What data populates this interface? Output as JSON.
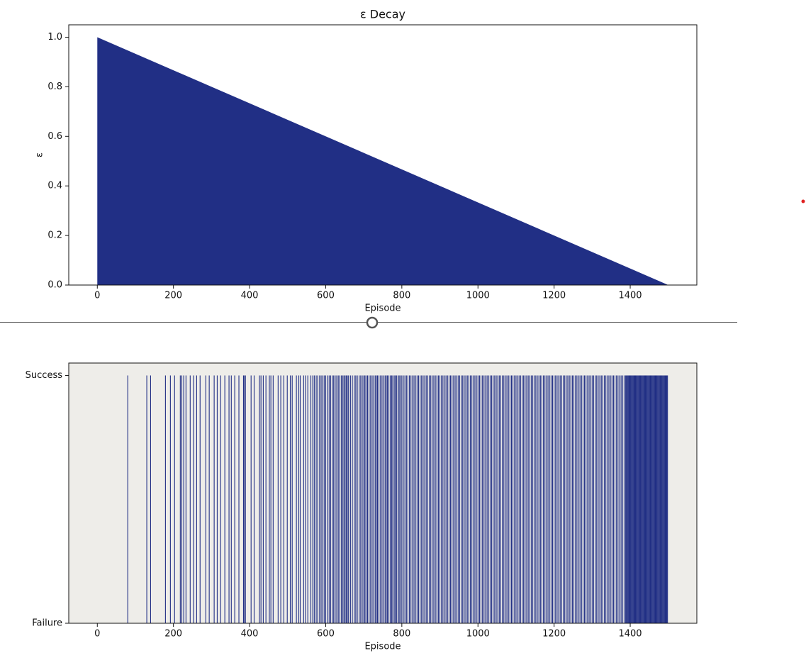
{
  "chart_data": [
    {
      "type": "area",
      "title": "ε Decay",
      "xlabel": "Episode",
      "ylabel": "ε",
      "x": [
        0,
        1500
      ],
      "values": [
        1.0,
        0.0
      ],
      "color": "#212f85",
      "xlim": [
        -75,
        1575
      ],
      "ylim": [
        0,
        1.05
      ],
      "xticks": [
        0,
        200,
        400,
        600,
        800,
        1000,
        1200,
        1400
      ],
      "yticks": [
        {
          "value": 0,
          "label": "0.0"
        },
        0.2,
        0.4,
        0.6,
        0.8,
        {
          "value": 1,
          "label": "1.0"
        }
      ]
    },
    {
      "type": "event",
      "xlabel": "Episode",
      "color": "#212f85",
      "background": "#eeede9",
      "xlim": [
        -75,
        1575
      ],
      "ylim": [
        0,
        1.05
      ],
      "xticks": [
        0,
        200,
        400,
        600,
        800,
        1000,
        1200,
        1400
      ],
      "yticks": [
        {
          "value": 0,
          "label": "Failure"
        },
        {
          "value": 1,
          "label": "Success"
        }
      ],
      "x": [
        80,
        130,
        140,
        179,
        192,
        203,
        218,
        222,
        227,
        233,
        244,
        253,
        261,
        270,
        285,
        294,
        307,
        315,
        324,
        335,
        346,
        352,
        361,
        372,
        384,
        387,
        389,
        404,
        412,
        426,
        430,
        436,
        443,
        452,
        456,
        462,
        475,
        482,
        490,
        499,
        507,
        512,
        523,
        529,
        533,
        542,
        547,
        553,
        561,
        566,
        570,
        575,
        579,
        584,
        588,
        592,
        596,
        600,
        604,
        609,
        613,
        617,
        621,
        625,
        629,
        633,
        637,
        641,
        645,
        648,
        651,
        654,
        657,
        660,
        665,
        670,
        675,
        679,
        683,
        688,
        692,
        696,
        700,
        703,
        706,
        710,
        714,
        718,
        722,
        726,
        730,
        733,
        736,
        740,
        744,
        748,
        752,
        756,
        759,
        762,
        766,
        770,
        773,
        776,
        780,
        783,
        786,
        790,
        793,
        796,
        800,
        804,
        808,
        812,
        816,
        820,
        824,
        828,
        832,
        836,
        840,
        844,
        848,
        852,
        856,
        860,
        864,
        868,
        872,
        876,
        880,
        884,
        888,
        892,
        896,
        900,
        904,
        908,
        912,
        916,
        920,
        924,
        928,
        932,
        936,
        940,
        944,
        948,
        952,
        956,
        960,
        964,
        968,
        972,
        976,
        980,
        984,
        988,
        992,
        996,
        1000,
        1004,
        1008,
        1012,
        1016,
        1020,
        1024,
        1028,
        1032,
        1036,
        1040,
        1044,
        1048,
        1052,
        1056,
        1060,
        1064,
        1068,
        1072,
        1076,
        1080,
        1084,
        1088,
        1092,
        1096,
        1100,
        1104,
        1108,
        1112,
        1116,
        1120,
        1124,
        1128,
        1132,
        1136,
        1140,
        1144,
        1148,
        1152,
        1156,
        1160,
        1164,
        1168,
        1172,
        1176,
        1180,
        1184,
        1188,
        1192,
        1196,
        1200,
        1204,
        1208,
        1212,
        1216,
        1220,
        1224,
        1228,
        1232,
        1236,
        1240,
        1244,
        1248,
        1252,
        1256,
        1260,
        1264,
        1268,
        1272,
        1276,
        1280,
        1284,
        1288,
        1292,
        1296,
        1300,
        1304,
        1308,
        1312,
        1316,
        1320,
        1324,
        1328,
        1332,
        1336,
        1340,
        1344,
        1348,
        1352,
        1356,
        1360,
        1364,
        1368,
        1372,
        1376,
        1380,
        1384,
        1388,
        1390,
        1392,
        1394,
        1396,
        1398,
        1400,
        1402,
        1404,
        1406,
        1408,
        1410,
        1412,
        1414,
        1416,
        1418,
        1420,
        1422,
        1424,
        1426,
        1428,
        1430,
        1432,
        1434,
        1436,
        1438,
        1440,
        1442,
        1444,
        1446,
        1448,
        1450,
        1452,
        1454,
        1456,
        1458,
        1460,
        1462,
        1464,
        1466,
        1468,
        1470,
        1472,
        1474,
        1476,
        1478,
        1480,
        1482,
        1484,
        1486,
        1488,
        1490,
        1492,
        1494,
        1496,
        1498
      ],
      "values": [
        1,
        1,
        1,
        1,
        1,
        1,
        1,
        1,
        1,
        1,
        1,
        1,
        1,
        1,
        1,
        1,
        1,
        1,
        1,
        1,
        1,
        1,
        1,
        1,
        1,
        1,
        1,
        1,
        1,
        1,
        1,
        1,
        1,
        1,
        1,
        1,
        1,
        1,
        1,
        1,
        1,
        1,
        1,
        1,
        1,
        1,
        1,
        1,
        1,
        1,
        1,
        1,
        1,
        1,
        1,
        1,
        1,
        1,
        1,
        1,
        1,
        1,
        1,
        1,
        1,
        1,
        1,
        1,
        1,
        1,
        1,
        1,
        1,
        1,
        1,
        1,
        1,
        1,
        1,
        1,
        1,
        1,
        1,
        1,
        1,
        1,
        1,
        1,
        1,
        1,
        1,
        1,
        1,
        1,
        1,
        1,
        1,
        1,
        1,
        1,
        1,
        1,
        1,
        1,
        1,
        1,
        1,
        1,
        1,
        1,
        1,
        1,
        1,
        1,
        1,
        1,
        1,
        1,
        1,
        1,
        1,
        1,
        1,
        1,
        1,
        1,
        1,
        1,
        1,
        1,
        1,
        1,
        1,
        1,
        1,
        1,
        1,
        1,
        1,
        1,
        1,
        1,
        1,
        1,
        1,
        1,
        1,
        1,
        1,
        1,
        1,
        1,
        1,
        1,
        1,
        1,
        1,
        1,
        1,
        1,
        1,
        1,
        1,
        1,
        1,
        1,
        1,
        1,
        1,
        1,
        1,
        1,
        1,
        1,
        1,
        1,
        1,
        1,
        1,
        1,
        1,
        1,
        1,
        1,
        1,
        1,
        1,
        1,
        1,
        1,
        1,
        1,
        1,
        1,
        1,
        1,
        1,
        1,
        1,
        1,
        1,
        1,
        1,
        1,
        1,
        1,
        1,
        1,
        1,
        1,
        1,
        1,
        1,
        1,
        1,
        1,
        1,
        1,
        1,
        1,
        1,
        1,
        1,
        1,
        1,
        1,
        1,
        1,
        1,
        1,
        1,
        1,
        1,
        1,
        1,
        1,
        1,
        1,
        1,
        1,
        1,
        1,
        1,
        1,
        1,
        1,
        1,
        1,
        1,
        1,
        1,
        1,
        1,
        1,
        1,
        1,
        1,
        1,
        1,
        1,
        1,
        1,
        1,
        1,
        1,
        1,
        1,
        1,
        1,
        1,
        1,
        1,
        1,
        1,
        1,
        1,
        1,
        1,
        1,
        1,
        1,
        1,
        1,
        1,
        1,
        1,
        1,
        1,
        1,
        1,
        1,
        1,
        1,
        1,
        1,
        1,
        1,
        1,
        1,
        1,
        1,
        1,
        1,
        1,
        1,
        1,
        1,
        1,
        1,
        1,
        1,
        1,
        1
      ]
    }
  ]
}
